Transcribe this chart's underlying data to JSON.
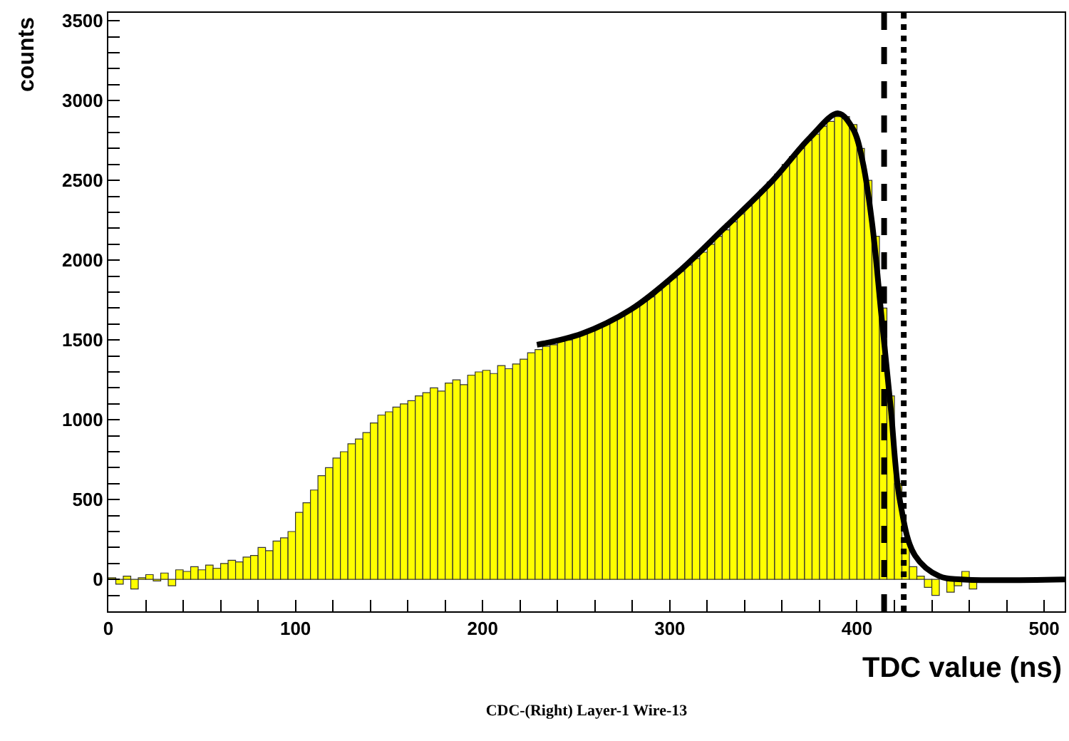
{
  "chart_data": {
    "type": "histogram",
    "title": "CDC-(Right) Layer-1 Wire-13",
    "xlabel": "TDC value (ns)",
    "ylabel": "counts",
    "bins": [
      0,
      4,
      8,
      12,
      16,
      20,
      24,
      28,
      32,
      36,
      40,
      44,
      48,
      52,
      56,
      60,
      64,
      68,
      72,
      76,
      80,
      84,
      88,
      92,
      96,
      100,
      104,
      108,
      112,
      116,
      120,
      124,
      128,
      132,
      136,
      140,
      144,
      148,
      152,
      156,
      160,
      164,
      168,
      172,
      176,
      180,
      184,
      188,
      192,
      196,
      200,
      204,
      208,
      212,
      216,
      220,
      224,
      228,
      232,
      236,
      240,
      244,
      248,
      252,
      256,
      260,
      264,
      268,
      272,
      276,
      280,
      284,
      288,
      292,
      296,
      300,
      304,
      308,
      312,
      316,
      320,
      324,
      328,
      332,
      336,
      340,
      344,
      348,
      352,
      356,
      360,
      364,
      368,
      372,
      376,
      380,
      384,
      388,
      392,
      396,
      400,
      404,
      408,
      412,
      416,
      420,
      424,
      428,
      432,
      436,
      440,
      444,
      448,
      452,
      456,
      460,
      464
    ],
    "series": [
      {
        "type": "histogram",
        "color": "#ffff00",
        "values": [
          10,
          -30,
          20,
          -60,
          10,
          30,
          -10,
          40,
          -40,
          60,
          50,
          80,
          60,
          90,
          70,
          100,
          120,
          110,
          140,
          150,
          200,
          180,
          240,
          260,
          300,
          420,
          480,
          560,
          650,
          700,
          760,
          800,
          850,
          880,
          920,
          980,
          1030,
          1050,
          1080,
          1100,
          1120,
          1150,
          1170,
          1200,
          1180,
          1230,
          1250,
          1220,
          1280,
          1300,
          1310,
          1290,
          1340,
          1320,
          1350,
          1380,
          1420,
          1440,
          1460,
          1470,
          1490,
          1500,
          1520,
          1540,
          1560,
          1580,
          1600,
          1630,
          1650,
          1680,
          1710,
          1740,
          1770,
          1810,
          1850,
          1890,
          1930,
          1970,
          2010,
          2050,
          2100,
          2150,
          2190,
          2240,
          2290,
          2340,
          2390,
          2440,
          2490,
          2540,
          2600,
          2650,
          2700,
          2750,
          2790,
          2840,
          2870,
          2900,
          2900,
          2850,
          2700,
          2500,
          2150,
          1700,
          1150,
          600,
          250,
          80,
          20,
          -50,
          -100,
          null,
          -80,
          -40,
          50,
          -60
        ]
      },
      {
        "type": "line",
        "color": "#000000",
        "x": [
          229,
          253,
          279,
          304,
          329,
          355,
          375,
          390,
          398,
          403,
          408,
          413,
          418,
          423,
          431,
          444,
          456,
          511
        ],
        "values": [
          1470,
          1540,
          1690,
          1920,
          2200,
          2500,
          2770,
          2920,
          2820,
          2620,
          2240,
          1660,
          1080,
          490,
          150,
          20,
          0,
          0
        ]
      }
    ],
    "ref_lines": [
      {
        "axis": "x",
        "value": 414.5,
        "color": "#000000",
        "line_style": "dashed"
      },
      {
        "axis": "x",
        "value": 425,
        "color": "#000000",
        "line_style": "dotted"
      }
    ],
    "xlim": [
      0,
      511
    ],
    "ylim": [
      -200,
      3550
    ],
    "xticks": [
      0,
      {
        "value": 20,
        "label": null
      },
      {
        "value": 40,
        "label": null
      },
      {
        "value": 60,
        "label": null
      },
      {
        "value": 80,
        "label": null
      },
      100,
      {
        "value": 120,
        "label": null
      },
      {
        "value": 140,
        "label": null
      },
      {
        "value": 160,
        "label": null
      },
      {
        "value": 180,
        "label": null
      },
      200,
      {
        "value": 220,
        "label": null
      },
      {
        "value": 240,
        "label": null
      },
      {
        "value": 260,
        "label": null
      },
      {
        "value": 280,
        "label": null
      },
      300,
      {
        "value": 320,
        "label": null
      },
      {
        "value": 340,
        "label": null
      },
      {
        "value": 360,
        "label": null
      },
      {
        "value": 380,
        "label": null
      },
      400,
      {
        "value": 420,
        "label": null
      },
      {
        "value": 440,
        "label": null
      },
      {
        "value": 460,
        "label": null
      },
      {
        "value": 480,
        "label": null
      },
      500
    ],
    "yticks": [
      {
        "value": -100,
        "label": null
      },
      0,
      {
        "value": 100,
        "label": null
      },
      {
        "value": 200,
        "label": null
      },
      {
        "value": 300,
        "label": null
      },
      {
        "value": 400,
        "label": null
      },
      500,
      {
        "value": 600,
        "label": null
      },
      {
        "value": 700,
        "label": null
      },
      {
        "value": 800,
        "label": null
      },
      {
        "value": 900,
        "label": null
      },
      1000,
      {
        "value": 1100,
        "label": null
      },
      {
        "value": 1200,
        "label": null
      },
      {
        "value": 1300,
        "label": null
      },
      {
        "value": 1400,
        "label": null
      },
      1500,
      {
        "value": 1600,
        "label": null
      },
      {
        "value": 1700,
        "label": null
      },
      {
        "value": 1800,
        "label": null
      },
      {
        "value": 1900,
        "label": null
      },
      2000,
      {
        "value": 2100,
        "label": null
      },
      {
        "value": 2200,
        "label": null
      },
      {
        "value": 2300,
        "label": null
      },
      {
        "value": 2400,
        "label": null
      },
      2500,
      {
        "value": 2600,
        "label": null
      },
      {
        "value": 2700,
        "label": null
      },
      {
        "value": 2800,
        "label": null
      },
      {
        "value": 2900,
        "label": null
      },
      3000,
      {
        "value": 3100,
        "label": null
      },
      {
        "value": 3200,
        "label": null
      },
      {
        "value": 3300,
        "label": null
      },
      {
        "value": 3400,
        "label": null
      },
      3500
    ],
    "grid": false,
    "marker": "none",
    "line_style": "solid"
  }
}
